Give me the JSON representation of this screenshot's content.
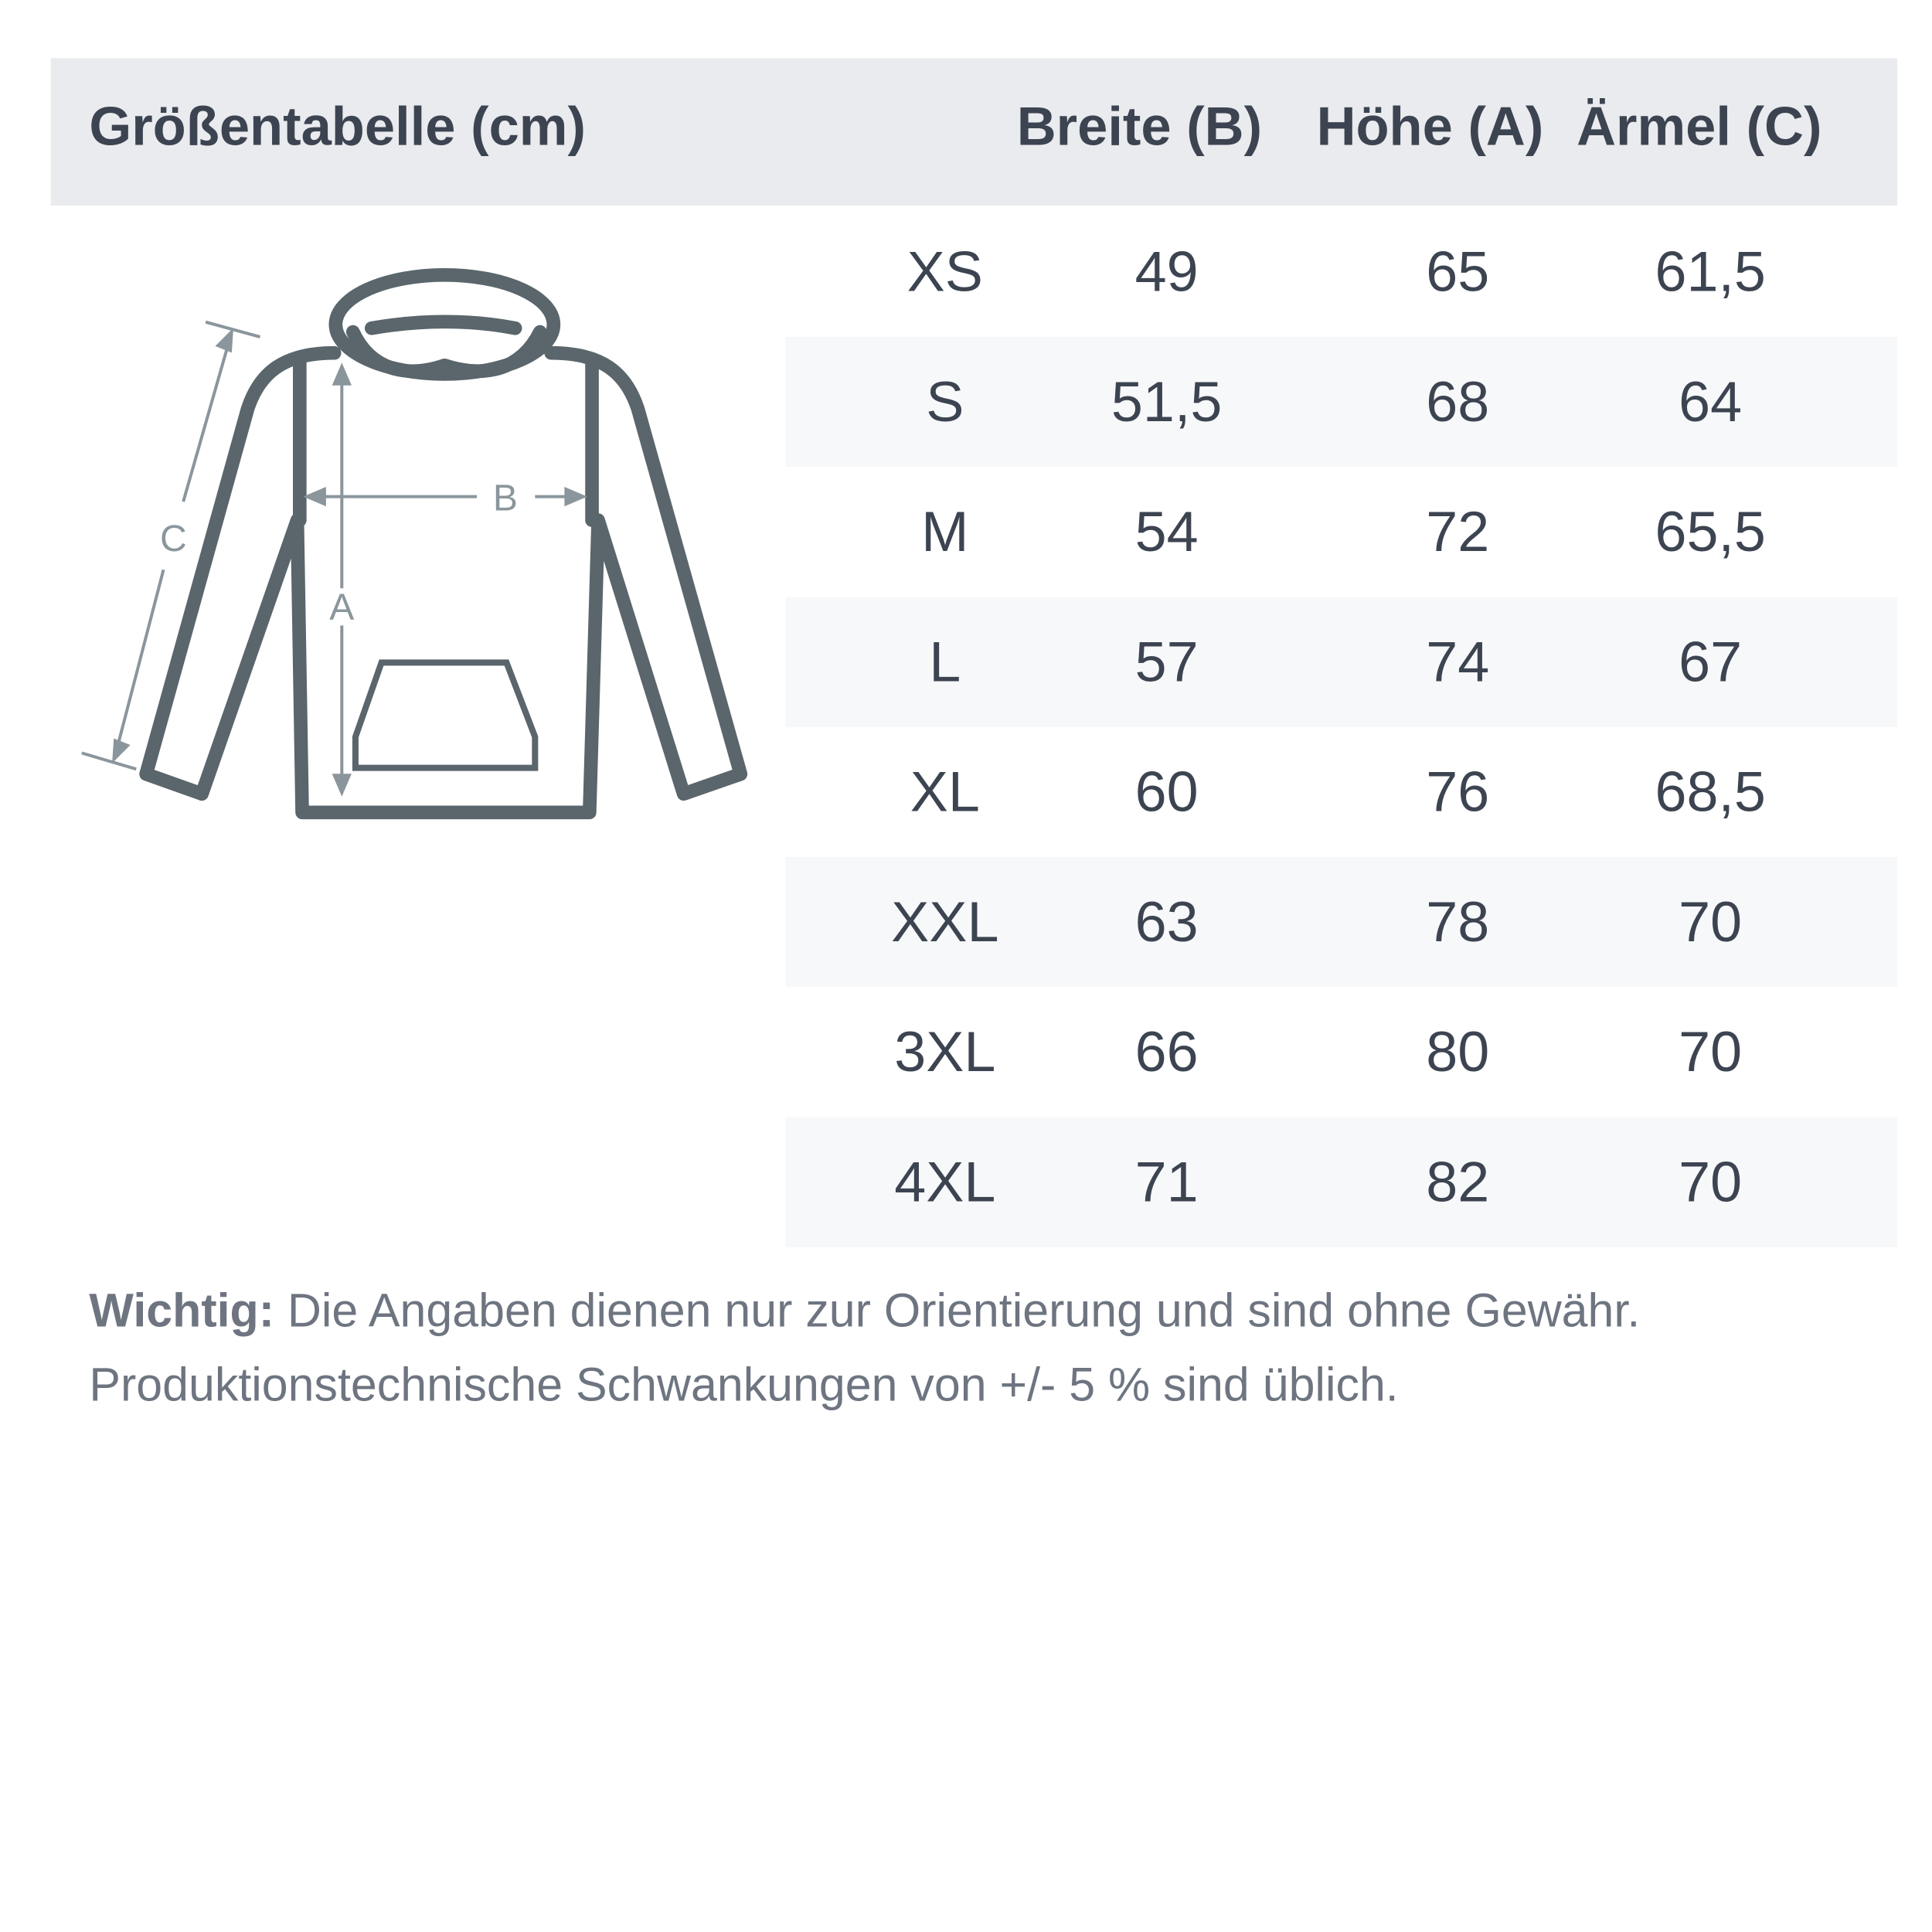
{
  "header": {
    "title": "Größentabelle (cm)",
    "columns": [
      "Breite (B)",
      "Höhe (A)",
      "Ärmel (C)"
    ]
  },
  "diagram": {
    "labels": {
      "width": "B",
      "height": "A",
      "sleeve": "C"
    },
    "outline_color": "#5a666c",
    "arrow_color": "#8a969c"
  },
  "rows": [
    {
      "size": "XS",
      "b": "49",
      "a": "65",
      "c": "61,5"
    },
    {
      "size": "S",
      "b": "51,5",
      "a": "68",
      "c": "64"
    },
    {
      "size": "M",
      "b": "54",
      "a": "72",
      "c": "65,5"
    },
    {
      "size": "L",
      "b": "57",
      "a": "74",
      "c": "67"
    },
    {
      "size": "XL",
      "b": "60",
      "a": "76",
      "c": "68,5"
    },
    {
      "size": "XXL",
      "b": "63",
      "a": "78",
      "c": "70"
    },
    {
      "size": "3XL",
      "b": "66",
      "a": "80",
      "c": "70"
    },
    {
      "size": "4XL",
      "b": "71",
      "a": "82",
      "c": "70"
    }
  ],
  "note": {
    "label": "Wichtig:",
    "line1": "Die Angaben dienen nur zur Orientierung und sind ohne Gewähr.",
    "line2": "Produktionstechnische Schwankungen von +/- 5 % sind üblich."
  }
}
